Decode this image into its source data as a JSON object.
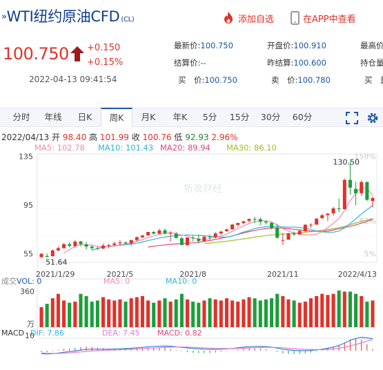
{
  "header": {
    "title": "WTI纽约原油CFD",
    "symbol": "(CL)",
    "add_watchlist": "添加自选",
    "view_in_app": "在APP中查看"
  },
  "quote": {
    "price": "100.750",
    "change": "+0.150",
    "change_pct": "+0.15%",
    "time": "2022-04-13 09:41:54",
    "latest_label": "最新价:",
    "latest": "100.750",
    "open_label": "开盘价:",
    "open": "100.910",
    "high_label": "最高价",
    "settle_label": "结算价:",
    "settle": "--",
    "prev_settle_label": "昨结算:",
    "prev_settle": "100.600",
    "open_interest_label": "持仓量",
    "bid_label": "买　价:",
    "bid": "100.750",
    "ask_label": "卖　价:",
    "ask": "100.780",
    "bid_vol_label": "买　量"
  },
  "tabs": [
    "分时",
    "年线",
    "日K",
    "周K",
    "月K",
    "年K",
    "5分",
    "15分",
    "30分",
    "60分"
  ],
  "active_tab": "周K",
  "chart_info": {
    "date": "2022/04/13",
    "open_label": "开",
    "open": "98.40",
    "high_label": "高",
    "high": "101.99",
    "close_label": "收",
    "close": "100.76",
    "low_label": "低",
    "low": "92.93",
    "pct": "2.96%",
    "ma5": "MA5: 102.78",
    "ma10": "MA10: 101.43",
    "ma20": "MA20: 89.94",
    "ma30": "MA30: 86.10",
    "vol_title": "成交",
    "vol": "VOL: 0",
    "vol_ma5": "MA5: 0",
    "vol_ma10": "MA10: 0",
    "macd_title": "MACD",
    "dif": "DIF: 7.86",
    "dea": "DEA: 7.45",
    "macd": "MACD: 0.82",
    "watermark": "新浪财经"
  },
  "colors": {
    "up": "#e0322a",
    "down": "#1b9e3a",
    "ma5": "#f08bb0",
    "ma10": "#2fb5d6",
    "ma20": "#e0457b",
    "ma30": "#9dc02a",
    "link": "#1b53a7"
  },
  "chart_data": {
    "type": "candlestick",
    "title": "",
    "x_ticks": [
      "2021/1/29",
      "2021/5",
      "2021/8",
      "2021/11",
      "2022/4/13"
    ],
    "y_ticks": [
      55,
      95,
      135
    ],
    "right_ticks": [
      "159%",
      "82%",
      "5%"
    ],
    "annotations": {
      "max": "130.50",
      "min": "51.64"
    },
    "ylim": [
      48,
      137
    ],
    "vol_ticks": [
      "360",
      "万"
    ],
    "macd_ticks": [
      "10"
    ],
    "candles": [
      [
        52.2,
        51.6,
        55.6,
        55.0
      ],
      [
        53.2,
        51.8,
        55.2,
        52.5
      ],
      [
        53.1,
        52.5,
        58.6,
        57.8
      ],
      [
        57.8,
        57.0,
        60.9,
        59.6
      ],
      [
        59.6,
        59.5,
        63.8,
        62.9
      ],
      [
        62.9,
        60.2,
        64.3,
        61.5
      ],
      [
        61.4,
        60.0,
        66.3,
        65.0
      ],
      [
        65.1,
        61.0,
        65.7,
        63.0
      ],
      [
        62.7,
        58.4,
        64.6,
        60.9
      ],
      [
        60.9,
        58.1,
        62.4,
        59.6
      ],
      [
        59.6,
        58.0,
        61.0,
        59.3
      ],
      [
        59.3,
        58.9,
        63.4,
        61.7
      ],
      [
        61.7,
        59.5,
        63.2,
        62.1
      ],
      [
        62.3,
        61.5,
        65.0,
        63.5
      ],
      [
        63.7,
        61.6,
        66.2,
        64.4
      ],
      [
        64.3,
        63.0,
        65.3,
        63.6
      ],
      [
        63.6,
        61.6,
        66.4,
        66.3
      ],
      [
        66.3,
        65.0,
        69.3,
        68.6
      ],
      [
        68.5,
        68.0,
        70.6,
        70.0
      ],
      [
        70.2,
        69.5,
        72.9,
        72.9
      ],
      [
        72.9,
        70.6,
        73.6,
        71.6
      ],
      [
        71.5,
        71.0,
        75.6,
        74.2
      ],
      [
        74.3,
        70.8,
        75.8,
        71.7
      ],
      [
        71.9,
        65.0,
        73.6,
        72.1
      ],
      [
        71.6,
        67.5,
        73.0,
        68.1
      ],
      [
        67.7,
        61.7,
        68.8,
        62.3
      ],
      [
        62.1,
        61.6,
        68.4,
        68.4
      ],
      [
        68.2,
        65.0,
        69.8,
        67.8
      ],
      [
        67.4,
        63.5,
        70.8,
        65.5
      ],
      [
        65.3,
        65.1,
        69.9,
        69.0
      ],
      [
        69.2,
        66.2,
        70.7,
        68.6
      ],
      [
        68.6,
        67.6,
        72.7,
        71.7
      ],
      [
        71.7,
        70.4,
        73.8,
        73.2
      ],
      [
        73.6,
        73.0,
        75.4,
        75.1
      ],
      [
        75.0,
        74.9,
        79.5,
        79.0
      ],
      [
        78.7,
        77.0,
        80.4,
        80.3
      ],
      [
        80.3,
        79.2,
        82.1,
        81.6
      ],
      [
        82.1,
        80.5,
        84.0,
        83.6
      ],
      [
        83.5,
        80.0,
        85.4,
        83.4
      ],
      [
        83.4,
        78.3,
        84.7,
        81.3
      ],
      [
        81.4,
        79.0,
        82.5,
        80.6
      ],
      [
        80.4,
        75.0,
        81.2,
        76.1
      ],
      [
        76.5,
        67.4,
        79.5,
        68.2
      ],
      [
        66.2,
        62.4,
        72.1,
        66.3
      ],
      [
        66.6,
        66.4,
        72.3,
        71.7
      ],
      [
        71.7,
        69.7,
        73.3,
        70.9
      ],
      [
        70.8,
        71.4,
        75.0,
        73.8
      ],
      [
        73.4,
        73.1,
        79.1,
        78.9
      ],
      [
        78.8,
        76.2,
        80.0,
        78.9
      ],
      [
        78.9,
        80.7,
        84.5,
        83.8
      ],
      [
        84.3,
        83.4,
        87.9,
        86.6
      ],
      [
        86.8,
        81.8,
        88.4,
        88.0
      ],
      [
        88.3,
        86.5,
        93.6,
        92.3
      ],
      [
        92.2,
        89.1,
        100.3,
        91.6
      ],
      [
        91.6,
        101.0,
        116.6,
        115.7
      ],
      [
        115.7,
        103.5,
        130.5,
        109.3
      ],
      [
        108.4,
        94.8,
        114.3,
        104.7
      ],
      [
        104.8,
        102.6,
        115.2,
        113.9
      ],
      [
        113.9,
        98.4,
        114.3,
        99.3
      ],
      [
        98.3,
        92.9,
        102.0,
        100.8
      ]
    ],
    "ma5": [
      null,
      null,
      null,
      null,
      55.6,
      58.4,
      61.2,
      62.4,
      62.7,
      62.0,
      61.1,
      60.9,
      60.9,
      61.2,
      62.4,
      63.1,
      63.9,
      65.3,
      66.6,
      68.3,
      69.6,
      71.1,
      71.7,
      72.4,
      71.5,
      70.5,
      69.5,
      68.1,
      66.8,
      66.6,
      67.7,
      68.5,
      69.6,
      71.2,
      73.4,
      75.8,
      77.8,
      79.8,
      81.6,
      82.0,
      82.1,
      81.1,
      78.7,
      75.8,
      73.7,
      72.2,
      71.1,
      70.7,
      70.6,
      71.0,
      73.3,
      76.4,
      80.1,
      84.1,
      90.6,
      98.6,
      104.7,
      109.8,
      108.6,
      102.8
    ],
    "ma10": [
      null,
      null,
      null,
      null,
      null,
      null,
      null,
      null,
      null,
      57.9,
      59.4,
      60.5,
      61.1,
      61.6,
      62.1,
      62.4,
      63.0,
      63.7,
      64.7,
      65.9,
      66.9,
      68.0,
      68.7,
      69.5,
      69.9,
      70.3,
      70.5,
      70.3,
      70.1,
      69.8,
      69.4,
      68.9,
      68.7,
      68.7,
      69.6,
      71.2,
      72.9,
      74.2,
      75.7,
      76.7,
      77.2,
      77.6,
      77.5,
      77.1,
      76.8,
      77.0,
      76.5,
      76.0,
      75.0,
      73.6,
      73.0,
      72.7,
      72.8,
      73.6,
      76.3,
      79.9,
      83.7,
      87.6,
      91.3,
      94.7
    ],
    "ma20": [
      null,
      null,
      null,
      null,
      null,
      null,
      null,
      null,
      null,
      null,
      null,
      null,
      null,
      null,
      null,
      null,
      null,
      null,
      null,
      60.5,
      61.2,
      61.8,
      62.3,
      62.8,
      63.1,
      63.3,
      63.7,
      64.0,
      64.4,
      65.2,
      65.9,
      66.8,
      67.7,
      68.7,
      69.7,
      71.0,
      72.1,
      73.2,
      74.2,
      75.1,
      75.8,
      76.2,
      76.3,
      76.1,
      75.7,
      75.1,
      74.6,
      74.1,
      73.7,
      73.4,
      73.4,
      73.8,
      74.6,
      75.6,
      76.6,
      77.6,
      78.7,
      80.2,
      81.6,
      83.2
    ],
    "ma30": [
      null,
      null,
      null,
      null,
      null,
      null,
      null,
      null,
      null,
      null,
      null,
      null,
      null,
      null,
      null,
      null,
      null,
      null,
      null,
      null,
      null,
      null,
      null,
      null,
      null,
      null,
      null,
      null,
      null,
      63.4,
      63.8,
      64.3,
      64.8,
      65.3,
      65.9,
      66.6,
      67.3,
      67.9,
      68.7,
      69.3,
      70.0,
      70.5,
      70.9,
      71.2,
      71.5,
      71.8,
      72.2,
      72.6,
      73.1,
      73.7,
      74.4,
      75.0,
      75.7,
      76.4,
      77.6,
      78.9,
      80.3,
      81.6,
      82.7,
      83.8
    ],
    "volume": [
      180,
      210,
      260,
      300,
      240,
      220,
      230,
      300,
      280,
      230,
      240,
      270,
      250,
      240,
      250,
      230,
      260,
      270,
      280,
      240,
      220,
      240,
      260,
      230,
      250,
      300,
      250,
      230,
      220,
      240,
      260,
      250,
      240,
      260,
      240,
      230,
      250,
      270,
      260,
      240,
      250,
      260,
      300,
      280,
      250,
      240,
      220,
      230,
      260,
      280,
      300,
      290,
      300,
      330,
      320,
      320,
      300,
      280,
      230,
      240
    ],
    "macd_dif": [
      -2.0,
      -2.2,
      -2.0,
      -1.6,
      -1.0,
      -0.6,
      -0.2,
      0.4,
      0.8,
      1.0,
      1.0,
      1.0,
      1.0,
      1.1,
      1.2,
      1.4,
      1.6,
      1.9,
      2.2,
      2.5,
      2.8,
      2.9,
      3.0,
      2.9,
      2.6,
      2.2,
      1.8,
      1.5,
      1.2,
      1.0,
      0.9,
      0.9,
      1.0,
      1.2,
      1.5,
      1.9,
      2.3,
      2.6,
      2.8,
      2.8,
      2.7,
      2.3,
      1.7,
      1.0,
      0.5,
      0.2,
      0.0,
      0.0,
      0.2,
      0.5,
      1.0,
      1.6,
      2.4,
      3.4,
      5.0,
      6.8,
      8.0,
      8.8,
      8.4,
      7.9
    ],
    "macd_dea": [
      -1.5,
      -1.7,
      -1.8,
      -1.8,
      -1.6,
      -1.4,
      -1.1,
      -0.8,
      -0.5,
      -0.2,
      0.0,
      0.2,
      0.4,
      0.5,
      0.6,
      0.8,
      0.9,
      1.1,
      1.3,
      1.5,
      1.7,
      1.9,
      2.1,
      2.3,
      2.4,
      2.4,
      2.3,
      2.2,
      2.0,
      1.8,
      1.7,
      1.5,
      1.4,
      1.4,
      1.4,
      1.5,
      1.6,
      1.8,
      2.0,
      2.1,
      2.2,
      2.2,
      2.1,
      1.9,
      1.6,
      1.3,
      1.1,
      0.9,
      0.8,
      0.7,
      0.7,
      0.9,
      1.2,
      1.6,
      2.3,
      3.1,
      4.1,
      5.1,
      6.3,
      7.4
    ]
  }
}
